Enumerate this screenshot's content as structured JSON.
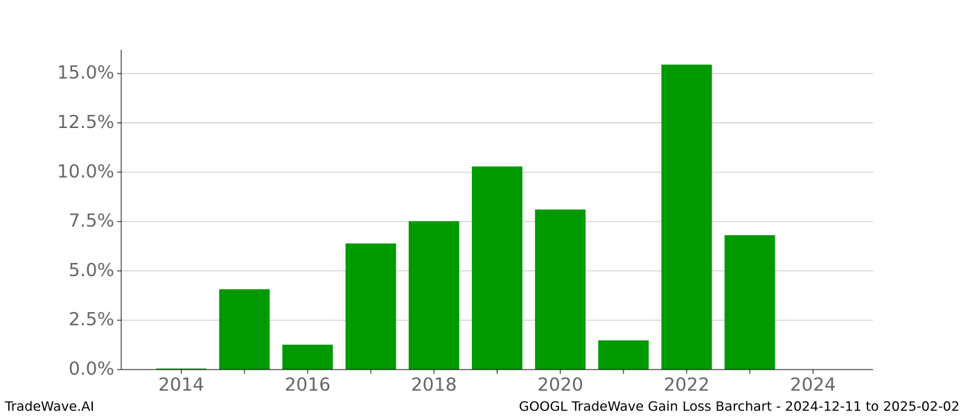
{
  "chart_data": {
    "type": "bar",
    "title": "GOOGL TradeWave Gain Loss Barchart - 2024-12-11 to 2025-02-02",
    "watermark": "TradeWave.AI",
    "x": [
      2014,
      2015,
      2016,
      2017,
      2018,
      2019,
      2020,
      2021,
      2022,
      2023
    ],
    "values": [
      0.05,
      4.07,
      1.26,
      6.39,
      7.52,
      10.29,
      8.11,
      1.48,
      15.45,
      6.81
    ],
    "color": "#009900",
    "xlim": [
      2013.05,
      2024.95
    ],
    "xticks": [
      2014,
      2016,
      2018,
      2020,
      2022,
      2024
    ],
    "xminor_ticks": [
      2015,
      2017,
      2019,
      2021,
      2023
    ],
    "ylim": [
      0,
      16.2
    ],
    "yticks": [
      {
        "value": 0,
        "label": "0.0%"
      },
      {
        "value": 2.5,
        "label": "2.5%"
      },
      {
        "value": 5,
        "label": "5.0%"
      },
      {
        "value": 7.5,
        "label": "7.5%"
      },
      {
        "value": 10,
        "label": "10.0%"
      },
      {
        "value": 12.5,
        "label": "12.5%"
      },
      {
        "value": 15,
        "label": "15.0%"
      }
    ],
    "grid": true
  }
}
